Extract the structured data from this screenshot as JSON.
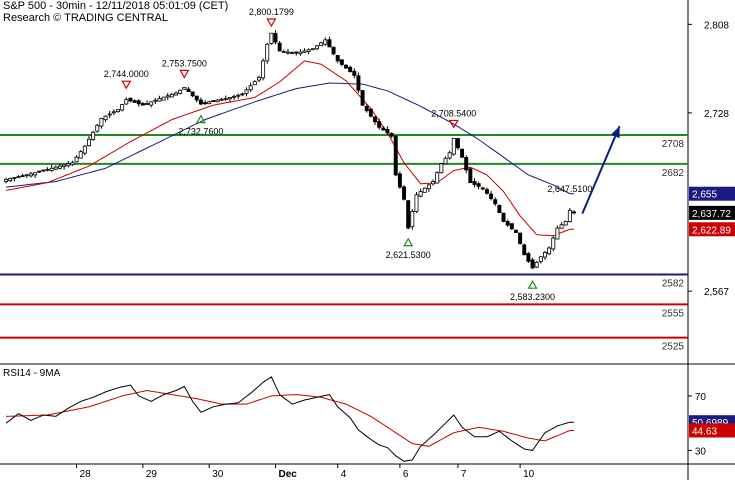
{
  "header": {
    "title_line": "S&P 500 - 30min - 12/11/2018 05:01:09 (CET)",
    "source_line": "Research © TRADING CENTRAL"
  },
  "rsi_title": "RSI14 - 9MA",
  "colors": {
    "candle": "#000000",
    "ma_fast": "#cc0000",
    "ma_slow": "#1a1a80",
    "support_resistance_green": "#1f8a1f",
    "support_blue": "#1a1a80",
    "support_red": "#cc0000",
    "arrow": "#0a1f7a",
    "marker_high": "#cc0000",
    "marker_low": "#1f8a1f",
    "badge_price": "#000000",
    "badge_ma_fast": "#cc0000",
    "badge_ma_slow": "#1a1a80",
    "grid_sep": "#000000"
  },
  "chart_data": {
    "type": "candlestick",
    "price_ylim": [
      2503,
      2830
    ],
    "price_axis_ticks": [
      2808,
      2728,
      2567
    ],
    "horizontal_levels": [
      {
        "label": "2708",
        "value": 2708,
        "color": "green"
      },
      {
        "label": "2682",
        "value": 2682,
        "color": "green"
      },
      {
        "label": "2582",
        "value": 2582,
        "color": "blue"
      },
      {
        "label": "2555",
        "value": 2555,
        "color": "red"
      },
      {
        "label": "2525",
        "value": 2525,
        "color": "red"
      }
    ],
    "price_badges": [
      {
        "label": "2,655",
        "value": 2655,
        "series": "ma_slow"
      },
      {
        "label": "2,637.72",
        "value": 2637.72,
        "series": "price"
      },
      {
        "label": "2,622.89",
        "value": 2622.89,
        "series": "ma_fast"
      }
    ],
    "annotations": [
      {
        "label": "2,744.0000",
        "idx": 29,
        "value": 2744.0,
        "kind": "high"
      },
      {
        "label": "2,753.7500",
        "idx": 43,
        "value": 2753.75,
        "kind": "high"
      },
      {
        "label": "2,732.7600",
        "idx": 47,
        "value": 2732.76,
        "kind": "low"
      },
      {
        "label": "2,800.1799",
        "idx": 64,
        "value": 2800.18,
        "kind": "high"
      },
      {
        "label": "2,621.5300",
        "idx": 97,
        "value": 2621.53,
        "kind": "low"
      },
      {
        "label": "2,708.5400",
        "idx": 108,
        "value": 2708.54,
        "kind": "high"
      },
      {
        "label": "2,583.2300",
        "idx": 127,
        "value": 2583.23,
        "kind": "low"
      },
      {
        "label": "2,647.5100",
        "idx": 136,
        "value": 2647.51,
        "kind": "last"
      }
    ],
    "projection_arrow": {
      "from_idx": 139,
      "from_value": 2637,
      "to_idx": 148,
      "to_value": 2716
    },
    "x_day_labels": [
      {
        "label": "28",
        "idx": 17
      },
      {
        "label": "29",
        "idx": 33
      },
      {
        "label": "30",
        "idx": 49
      },
      {
        "label": "Dec",
        "idx": 65
      },
      {
        "label": "4",
        "idx": 80
      },
      {
        "label": "6",
        "idx": 95
      },
      {
        "label": "7",
        "idx": 109
      },
      {
        "label": "10",
        "idx": 124
      }
    ],
    "total_slots": 165,
    "ohlc_key_closes": [
      [
        0,
        2668
      ],
      [
        6,
        2673
      ],
      [
        12,
        2679
      ],
      [
        16,
        2683
      ],
      [
        19,
        2698
      ],
      [
        23,
        2723
      ],
      [
        27,
        2731
      ],
      [
        29,
        2740
      ],
      [
        33,
        2735
      ],
      [
        37,
        2741
      ],
      [
        41,
        2746
      ],
      [
        43,
        2751
      ],
      [
        47,
        2736
      ],
      [
        50,
        2739
      ],
      [
        53,
        2741
      ],
      [
        57,
        2745
      ],
      [
        61,
        2760
      ],
      [
        63,
        2790
      ],
      [
        64,
        2800
      ],
      [
        66,
        2784
      ],
      [
        70,
        2782
      ],
      [
        74,
        2786
      ],
      [
        77,
        2794
      ],
      [
        80,
        2775
      ],
      [
        84,
        2762
      ],
      [
        86,
        2735
      ],
      [
        90,
        2715
      ],
      [
        92,
        2710
      ],
      [
        93,
        2707
      ],
      [
        94,
        2672
      ],
      [
        96,
        2650
      ],
      [
        97,
        2624
      ],
      [
        99,
        2654
      ],
      [
        103,
        2666
      ],
      [
        105,
        2682
      ],
      [
        107,
        2692
      ],
      [
        108,
        2705
      ],
      [
        110,
        2688
      ],
      [
        112,
        2665
      ],
      [
        115,
        2660
      ],
      [
        118,
        2646
      ],
      [
        120,
        2630
      ],
      [
        123,
        2620
      ],
      [
        125,
        2600
      ],
      [
        127,
        2588
      ],
      [
        129,
        2598
      ],
      [
        131,
        2606
      ],
      [
        133,
        2624
      ],
      [
        135,
        2630
      ],
      [
        136,
        2640
      ],
      [
        137,
        2637.72
      ]
    ],
    "ma_fast_key": [
      [
        0,
        2658
      ],
      [
        10,
        2665
      ],
      [
        20,
        2680
      ],
      [
        30,
        2702
      ],
      [
        40,
        2722
      ],
      [
        50,
        2735
      ],
      [
        60,
        2742
      ],
      [
        66,
        2756
      ],
      [
        72,
        2775
      ],
      [
        76,
        2772
      ],
      [
        82,
        2757
      ],
      [
        88,
        2732
      ],
      [
        92,
        2710
      ],
      [
        96,
        2683
      ],
      [
        100,
        2664
      ],
      [
        104,
        2665
      ],
      [
        108,
        2676
      ],
      [
        112,
        2679
      ],
      [
        116,
        2672
      ],
      [
        120,
        2657
      ],
      [
        124,
        2635
      ],
      [
        128,
        2618
      ],
      [
        132,
        2617
      ],
      [
        136,
        2622.89
      ]
    ],
    "ma_slow_key": [
      [
        0,
        2661
      ],
      [
        12,
        2666
      ],
      [
        24,
        2678
      ],
      [
        36,
        2700
      ],
      [
        48,
        2722
      ],
      [
        60,
        2738
      ],
      [
        70,
        2750
      ],
      [
        78,
        2755
      ],
      [
        86,
        2754
      ],
      [
        92,
        2748
      ],
      [
        100,
        2734
      ],
      [
        108,
        2718
      ],
      [
        114,
        2704
      ],
      [
        120,
        2688
      ],
      [
        126,
        2672
      ],
      [
        132,
        2663
      ],
      [
        136,
        2655
      ]
    ],
    "rsi": {
      "ylim": [
        20,
        92
      ],
      "axis_ticks": [
        70,
        30
      ],
      "badges": [
        {
          "label": "50.6989",
          "value": 50.6989,
          "series": "rsi"
        },
        {
          "label": "44.63",
          "value": 44.63,
          "series": "ma"
        }
      ],
      "rsi_key": [
        [
          0,
          50
        ],
        [
          3,
          57
        ],
        [
          6,
          52
        ],
        [
          9,
          56
        ],
        [
          12,
          55
        ],
        [
          15,
          61
        ],
        [
          18,
          66
        ],
        [
          21,
          69
        ],
        [
          24,
          73
        ],
        [
          27,
          76
        ],
        [
          30,
          78
        ],
        [
          32,
          70
        ],
        [
          35,
          66
        ],
        [
          38,
          71
        ],
        [
          41,
          74
        ],
        [
          43,
          77
        ],
        [
          45,
          66
        ],
        [
          47,
          58
        ],
        [
          50,
          62
        ],
        [
          53,
          64
        ],
        [
          56,
          65
        ],
        [
          59,
          72
        ],
        [
          62,
          80
        ],
        [
          64,
          84
        ],
        [
          66,
          71
        ],
        [
          69,
          64
        ],
        [
          72,
          67
        ],
        [
          75,
          69
        ],
        [
          78,
          71
        ],
        [
          80,
          62
        ],
        [
          83,
          54
        ],
        [
          85,
          45
        ],
        [
          88,
          38
        ],
        [
          90,
          34
        ],
        [
          92,
          32
        ],
        [
          94,
          26
        ],
        [
          96,
          22
        ],
        [
          98,
          23
        ],
        [
          100,
          33
        ],
        [
          103,
          41
        ],
        [
          105,
          47
        ],
        [
          108,
          56
        ],
        [
          110,
          47
        ],
        [
          113,
          40
        ],
        [
          116,
          40
        ],
        [
          119,
          44
        ],
        [
          122,
          37
        ],
        [
          125,
          31
        ],
        [
          127,
          30
        ],
        [
          130,
          43
        ],
        [
          133,
          48
        ],
        [
          136,
          50.6989
        ]
      ],
      "ma_key": [
        [
          0,
          55
        ],
        [
          10,
          56
        ],
        [
          20,
          62
        ],
        [
          28,
          70
        ],
        [
          34,
          74
        ],
        [
          40,
          71
        ],
        [
          46,
          68
        ],
        [
          52,
          64
        ],
        [
          58,
          64
        ],
        [
          64,
          70
        ],
        [
          70,
          71
        ],
        [
          76,
          69
        ],
        [
          82,
          64
        ],
        [
          88,
          55
        ],
        [
          94,
          43
        ],
        [
          98,
          35
        ],
        [
          102,
          33
        ],
        [
          108,
          43
        ],
        [
          114,
          47
        ],
        [
          120,
          44
        ],
        [
          126,
          39
        ],
        [
          130,
          37
        ],
        [
          136,
          44.63
        ]
      ]
    }
  }
}
